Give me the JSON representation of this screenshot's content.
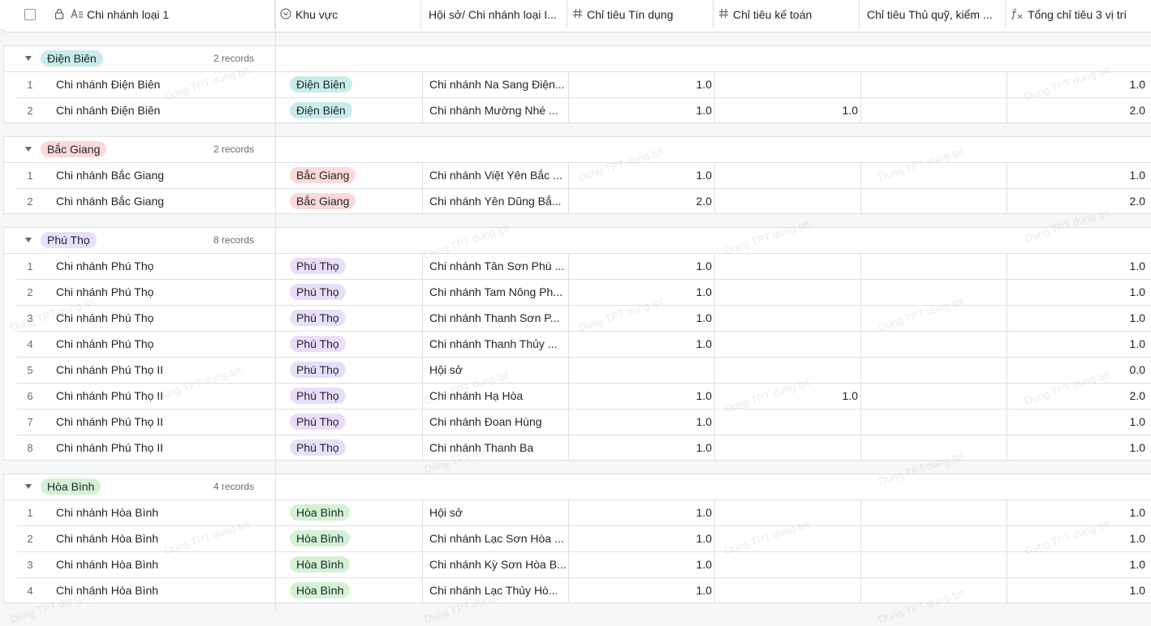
{
  "header": {
    "col1": "Chi nhánh loại 1",
    "col2": "Khu vực",
    "col3": "Hội sở/ Chi nhánh loại I...",
    "col4": "Chỉ tiêu Tín dụng",
    "col5": "Chỉ tiêu kế toán",
    "col6": "Chỉ tiêu Thủ quỹ, kiểm ...",
    "col7": "Tổng chỉ tiêu 3 vị trí",
    "icons": [
      "checkbox-icon",
      "lock-icon",
      "text-field-icon",
      "single-select-icon",
      "number-icon",
      "number-icon",
      "formula-icon"
    ]
  },
  "watermark": "Dung TPT dung.tpt",
  "groups": [
    {
      "label": "Điện Biên",
      "count": "2 records",
      "bg": "#c8ecea",
      "fg": "#1f2329",
      "rows": [
        {
          "idx": "1",
          "name": "Chi nhánh Điện Biên",
          "tag": "Điện Biên",
          "hq": "Chi nhánh Na Sang Điện...",
          "v1": "1.0",
          "v2": "",
          "v3": "",
          "v4": "1.0"
        },
        {
          "idx": "2",
          "name": "Chi nhánh Điện Biên",
          "tag": "Điện Biên",
          "hq": "Chi nhánh Mường Nhé ...",
          "v1": "1.0",
          "v2": "1.0",
          "v3": "",
          "v4": "2.0"
        }
      ]
    },
    {
      "label": "Bắc Giang",
      "count": "2 records",
      "bg": "#fdd9d9",
      "fg": "#1f2329",
      "rows": [
        {
          "idx": "1",
          "name": "Chi nhánh Bắc Giang",
          "tag": "Bắc Giang",
          "hq": "Chi nhánh Việt Yên Bắc ...",
          "v1": "1.0",
          "v2": "",
          "v3": "",
          "v4": "1.0"
        },
        {
          "idx": "2",
          "name": "Chi nhánh Bắc Giang",
          "tag": "Bắc Giang",
          "hq": "Chi nhánh Yên Dũng Bắ...",
          "v1": "2.0",
          "v2": "",
          "v3": "",
          "v4": "2.0"
        }
      ]
    },
    {
      "label": "Phú Thọ",
      "count": "8 records",
      "bg": "#e8defa",
      "fg": "#1f2329",
      "rows": [
        {
          "idx": "1",
          "name": "Chi nhánh Phú Thọ",
          "tag": "Phú Thọ",
          "hq": "Chi nhánh Tân Sơn Phú ...",
          "v1": "1.0",
          "v2": "",
          "v3": "",
          "v4": "1.0"
        },
        {
          "idx": "2",
          "name": "Chi nhánh Phú Thọ",
          "tag": "Phú Thọ",
          "hq": "Chi nhánh Tam Nông Ph...",
          "v1": "1.0",
          "v2": "",
          "v3": "",
          "v4": "1.0"
        },
        {
          "idx": "3",
          "name": "Chi nhánh Phú Thọ",
          "tag": "Phú Thọ",
          "hq": "Chi nhánh Thanh Sơn P...",
          "v1": "1.0",
          "v2": "",
          "v3": "",
          "v4": "1.0"
        },
        {
          "idx": "4",
          "name": "Chi nhánh Phú Thọ",
          "tag": "Phú Thọ",
          "hq": "Chi nhánh Thanh Thủy ...",
          "v1": "1.0",
          "v2": "",
          "v3": "",
          "v4": "1.0"
        },
        {
          "idx": "5",
          "name": "Chi nhánh Phú Thọ II",
          "tag": "Phú Thọ",
          "hq": "Hội sở",
          "v1": "",
          "v2": "",
          "v3": "",
          "v4": "0.0"
        },
        {
          "idx": "6",
          "name": "Chi nhánh Phú Thọ II",
          "tag": "Phú Thọ",
          "hq": "Chi nhánh Hạ Hòa",
          "v1": "1.0",
          "v2": "1.0",
          "v3": "",
          "v4": "2.0"
        },
        {
          "idx": "7",
          "name": "Chi nhánh Phú Thọ II",
          "tag": "Phú Thọ",
          "hq": "Chi nhánh Đoan Hùng",
          "v1": "1.0",
          "v2": "",
          "v3": "",
          "v4": "1.0"
        },
        {
          "idx": "8",
          "name": "Chi nhánh Phú Thọ II",
          "tag": "Phú Thọ",
          "hq": "Chi nhánh Thanh Ba",
          "v1": "1.0",
          "v2": "",
          "v3": "",
          "v4": "1.0"
        }
      ]
    },
    {
      "label": "Hòa Bình",
      "count": "4 records",
      "bg": "#d3f2d3",
      "fg": "#1f2329",
      "rows": [
        {
          "idx": "1",
          "name": "Chi nhánh Hòa Bình",
          "tag": "Hòa Bình",
          "hq": "Hội sở",
          "v1": "1.0",
          "v2": "",
          "v3": "",
          "v4": "1.0"
        },
        {
          "idx": "2",
          "name": "Chi nhánh Hòa Bình",
          "tag": "Hòa Bình",
          "hq": "Chi nhánh Lạc Sơn Hòa ...",
          "v1": "1.0",
          "v2": "",
          "v3": "",
          "v4": "1.0"
        },
        {
          "idx": "3",
          "name": "Chi nhánh Hòa Bình",
          "tag": "Hòa Bình",
          "hq": "Chi nhánh Kỳ Sơn Hòa B...",
          "v1": "1.0",
          "v2": "",
          "v3": "",
          "v4": "1.0"
        },
        {
          "idx": "4",
          "name": "Chi nhánh Hòa Bình",
          "tag": "Hòa Bình",
          "hq": "Chi nhánh Lạc Thủy Hò...",
          "v1": "1.0",
          "v2": "",
          "v3": "",
          "v4": "1.0"
        }
      ]
    }
  ]
}
